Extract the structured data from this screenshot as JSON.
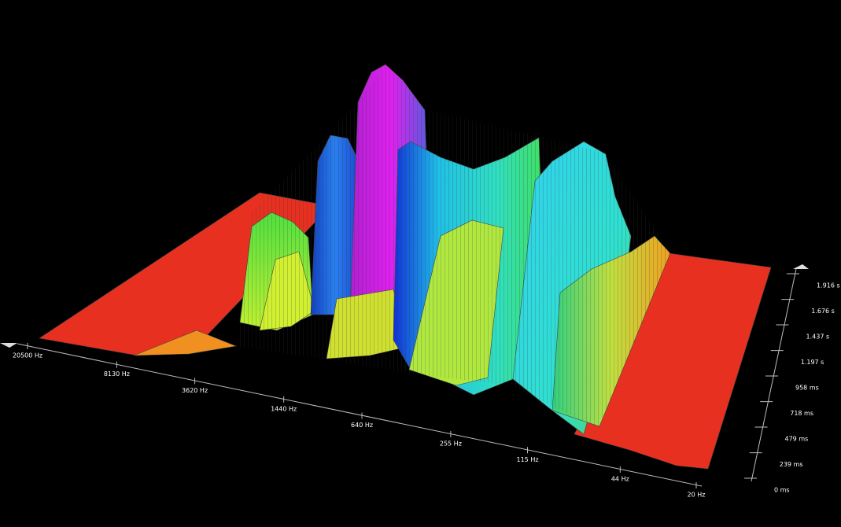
{
  "chart_data": {
    "type": "waterfall3d",
    "xscale": "log",
    "xlim": [
      20500,
      20
    ],
    "xticks": [
      {
        "value": 20500,
        "label": "20500 Hz"
      },
      {
        "value": 8130,
        "label": "8130 Hz"
      },
      {
        "value": 3620,
        "label": "3620 Hz"
      },
      {
        "value": 1440,
        "label": "1440 Hz"
      },
      {
        "value": 640,
        "label": "640 Hz"
      },
      {
        "value": 255,
        "label": "255 Hz"
      },
      {
        "value": 115,
        "label": "115 Hz"
      },
      {
        "value": 44,
        "label": "44 Hz"
      },
      {
        "value": 20,
        "label": "20 Hz"
      }
    ],
    "ylim": [
      0,
      1916
    ],
    "yticks": [
      {
        "value": 0,
        "label": "0 ms"
      },
      {
        "value": 239,
        "label": "239 ms"
      },
      {
        "value": 479,
        "label": "479 ms"
      },
      {
        "value": 718,
        "label": "718 ms"
      },
      {
        "value": 958,
        "label": "958 ms"
      },
      {
        "value": 1197,
        "label": "1.197 s"
      },
      {
        "value": 1437,
        "label": "1.437 s"
      },
      {
        "value": 1676,
        "label": "1.676 s"
      },
      {
        "value": 1916,
        "label": "1.916 s"
      }
    ]
  }
}
